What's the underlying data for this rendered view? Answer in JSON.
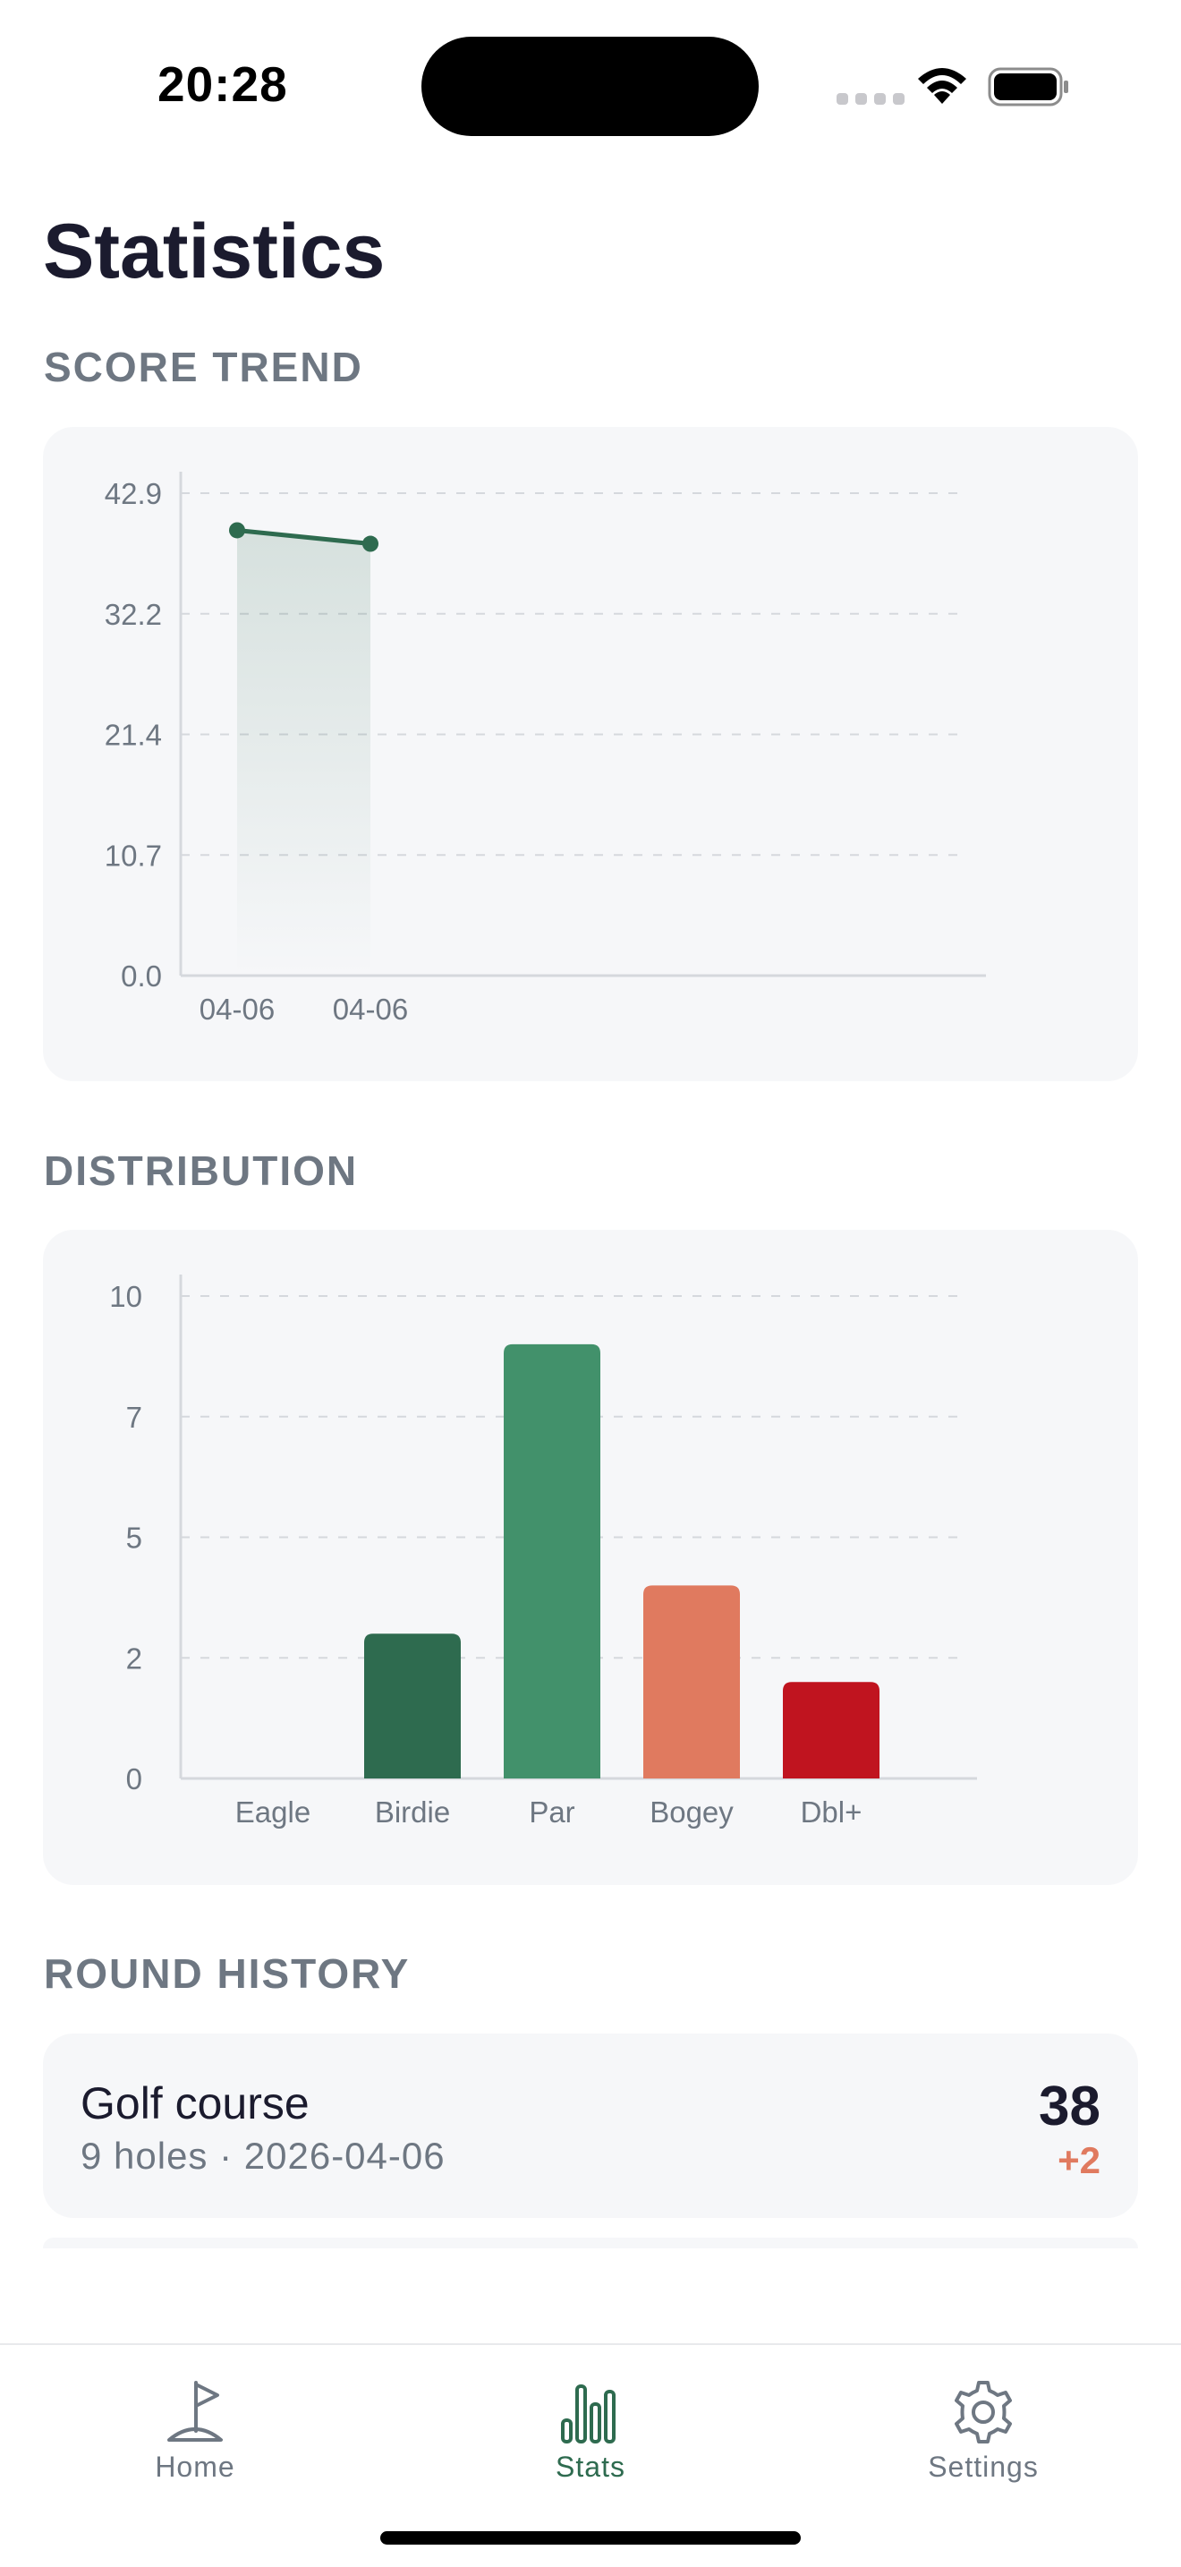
{
  "status_bar": {
    "time": "20:28"
  },
  "page": {
    "title": "Statistics"
  },
  "sections": {
    "score_trend": "SCORE TREND",
    "distribution": "DISTRIBUTION",
    "round_history": "ROUND HISTORY"
  },
  "colors": {
    "line": "#2e6b4f",
    "birdie": "#2e6b4f",
    "par": "#42916b",
    "bogey": "#e07a5f",
    "double_plus": "#c0141f",
    "over_par": "#e07a5f"
  },
  "chart_data": [
    {
      "type": "area",
      "x": [
        "04-06",
        "04-06"
      ],
      "series": [
        {
          "values": [
            39.6,
            38.4
          ]
        }
      ],
      "yticks": [
        "0.0",
        "10.7",
        "21.4",
        "32.2",
        "42.9"
      ],
      "ylim": [
        0,
        42.9
      ],
      "grid": true
    },
    {
      "type": "bar",
      "categories": [
        "Eagle",
        "Birdie",
        "Par",
        "Bogey",
        "Dbl+"
      ],
      "values": [
        0,
        3,
        9,
        4,
        2
      ],
      "yticks": [
        "0",
        "2",
        "5",
        "7",
        "10"
      ],
      "ylim": [
        0,
        10
      ],
      "grid": true
    }
  ],
  "rounds": [
    {
      "name": "Golf course",
      "meta": "9 holes · 2026-04-06",
      "score": "38",
      "diff": "+2"
    }
  ],
  "tabs": [
    {
      "label": "Home",
      "icon": "flag-icon",
      "active": false
    },
    {
      "label": "Stats",
      "icon": "bar-chart-icon",
      "active": true
    },
    {
      "label": "Settings",
      "icon": "gear-icon",
      "active": false
    }
  ]
}
